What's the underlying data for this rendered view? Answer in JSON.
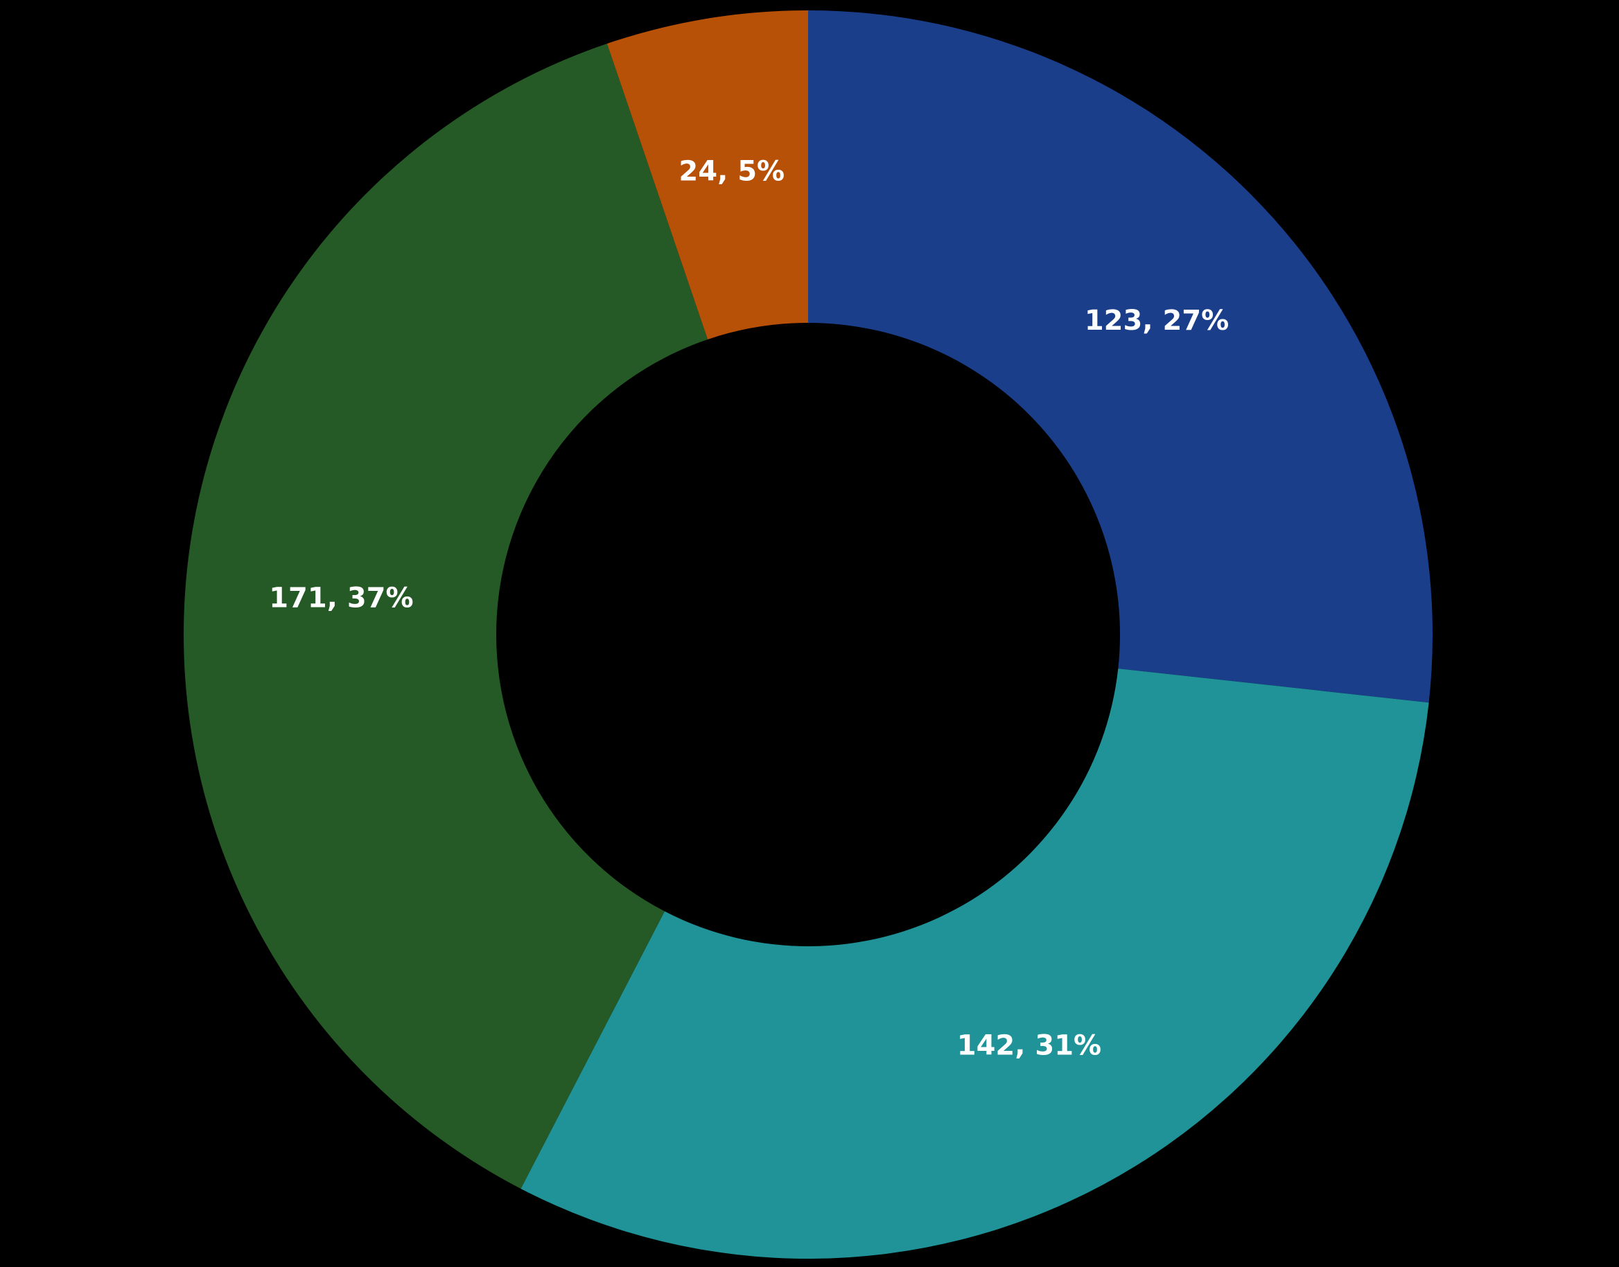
{
  "chart_data": {
    "type": "donut",
    "values": [
      123,
      142,
      171,
      24
    ],
    "value_labels": [
      "123, 27%",
      "142, 31%",
      "171, 37%",
      "24, 5%"
    ],
    "colors": [
      "#1a3e8a",
      "#1f9398",
      "#255a27",
      "#b85108"
    ]
  }
}
